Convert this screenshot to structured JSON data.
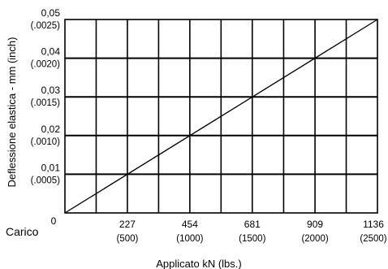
{
  "chart_data": {
    "type": "line",
    "xlabel": "Applicato kN (lbs.)",
    "ylabel": "Deflessione elastica - mm (inch)",
    "x_prefix_label": "Carico",
    "xlim": [
      0,
      1136
    ],
    "ylim": [
      0,
      0.05
    ],
    "grid": true,
    "x_ticks": [
      {
        "value": 0,
        "label": "0",
        "sub": ""
      },
      {
        "value": 227,
        "label": "227",
        "sub": "(500)"
      },
      {
        "value": 454,
        "label": "454",
        "sub": "(1000)"
      },
      {
        "value": 681,
        "label": "681",
        "sub": "(1500)"
      },
      {
        "value": 909,
        "label": "909",
        "sub": "(2000)"
      },
      {
        "value": 1136,
        "label": "1136",
        "sub": "(2500)"
      }
    ],
    "x_minor_ticks": [
      113.5,
      340.5,
      567.5,
      795,
      1022.5
    ],
    "y_ticks": [
      {
        "value": 0.01,
        "label": "0,01",
        "sub": "(.0005)"
      },
      {
        "value": 0.02,
        "label": "0,02",
        "sub": "(.0010)"
      },
      {
        "value": 0.03,
        "label": "0,03",
        "sub": "(.0015)"
      },
      {
        "value": 0.04,
        "label": "0,04",
        "sub": "(.0020)"
      },
      {
        "value": 0.05,
        "label": "0,05",
        "sub": "(.0025)"
      }
    ],
    "series": [
      {
        "x": [
          0,
          1136
        ],
        "y": [
          0,
          0.05
        ]
      }
    ]
  }
}
